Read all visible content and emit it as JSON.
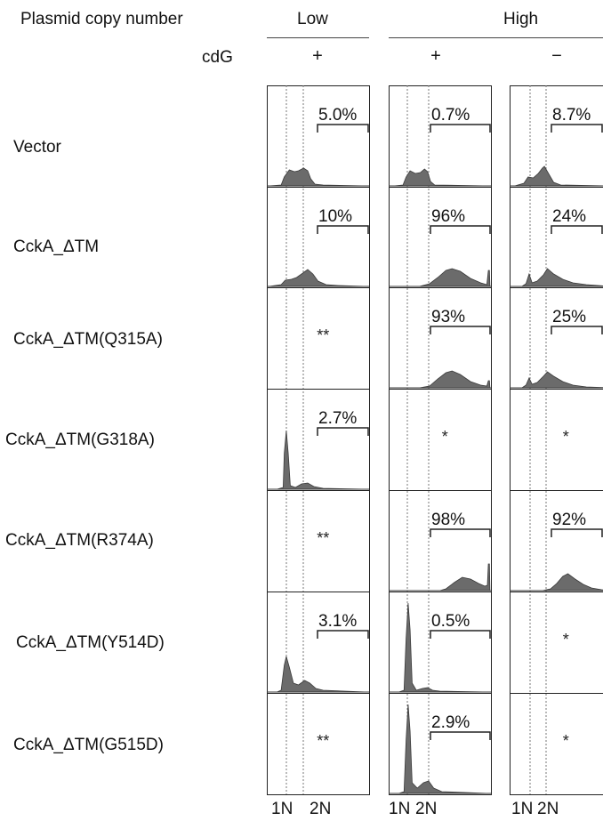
{
  "header": {
    "left_label": "Plasmid copy number",
    "low_label": "Low",
    "high_label": "High",
    "cdg_label": "cdG",
    "col_signs": [
      "+",
      "+",
      "−"
    ]
  },
  "rows": [
    "Vector",
    "CckA_ΔTM",
    "CckA_ΔTM(Q315A)",
    "CckA_ΔTM(G318A)",
    "CckA_ΔTM(R374A)",
    "CckA_ΔTM(Y514D)",
    "CckA_ΔTM(G515D)"
  ],
  "axis_labels": [
    [
      "1N",
      "2N"
    ],
    [
      "1N",
      "2N"
    ],
    [
      "1N",
      "2N"
    ]
  ],
  "chart_data": {
    "type": "area",
    "title": "",
    "xlabel": "",
    "ylabel": "",
    "x_tick_labels": [
      "1N",
      "2N"
    ],
    "columns": [
      {
        "copy_number": "Low",
        "cdG": "+"
      },
      {
        "copy_number": "High",
        "cdG": "+"
      },
      {
        "copy_number": "High",
        "cdG": "−"
      }
    ],
    "cells": [
      [
        {
          "pct": "5.0%",
          "mark": "",
          "shape": "vec_low"
        },
        {
          "pct": "0.7%",
          "mark": "",
          "shape": "vec_high"
        },
        {
          "pct": "8.7%",
          "mark": "",
          "shape": "vec_high_minus"
        }
      ],
      [
        {
          "pct": "10%",
          "mark": "",
          "shape": "dtm_low"
        },
        {
          "pct": "96%",
          "mark": "",
          "shape": "dtm_high"
        },
        {
          "pct": "24%",
          "mark": "",
          "shape": "dtm_high_minus"
        }
      ],
      [
        {
          "pct": "",
          "mark": "**",
          "shape": ""
        },
        {
          "pct": "93%",
          "mark": "",
          "shape": "q_high"
        },
        {
          "pct": "25%",
          "mark": "",
          "shape": "q_high_minus"
        }
      ],
      [
        {
          "pct": "2.7%",
          "mark": "",
          "shape": "g318_low"
        },
        {
          "pct": "",
          "mark": "*",
          "shape": ""
        },
        {
          "pct": "",
          "mark": "*",
          "shape": ""
        }
      ],
      [
        {
          "pct": "",
          "mark": "**",
          "shape": ""
        },
        {
          "pct": "98%",
          "mark": "",
          "shape": "r_high"
        },
        {
          "pct": "92%",
          "mark": "",
          "shape": "r_high_minus"
        }
      ],
      [
        {
          "pct": "3.1%",
          "mark": "",
          "shape": "y_low"
        },
        {
          "pct": "0.5%",
          "mark": "",
          "shape": "y_high"
        },
        {
          "pct": "",
          "mark": "*",
          "shape": ""
        }
      ],
      [
        {
          "pct": "",
          "mark": "**",
          "shape": ""
        },
        {
          "pct": "2.9%",
          "mark": "",
          "shape": "g515_high"
        },
        {
          "pct": "",
          "mark": "*",
          "shape": ""
        }
      ]
    ],
    "colors": {
      "fill": "#6b6b6b",
      "stroke": "#3a3a3a",
      "frame": "#222222",
      "dotted": "#777777"
    }
  }
}
